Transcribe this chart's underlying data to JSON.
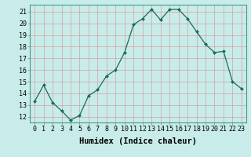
{
  "xlabel": "Humidex (Indice chaleur)",
  "x": [
    0,
    1,
    2,
    3,
    4,
    5,
    6,
    7,
    8,
    9,
    10,
    11,
    12,
    13,
    14,
    15,
    16,
    17,
    18,
    19,
    20,
    21,
    22,
    23
  ],
  "y": [
    13.3,
    14.7,
    13.2,
    12.5,
    11.7,
    12.1,
    13.8,
    14.3,
    15.5,
    16.0,
    17.5,
    19.9,
    20.4,
    21.2,
    20.3,
    21.2,
    21.2,
    20.4,
    19.3,
    18.2,
    17.5,
    17.6,
    15.0,
    14.4
  ],
  "line_color": "#1a6b5a",
  "marker_color": "#1a6b5a",
  "bg_color": "#c8ece9",
  "grid_color": "#d4a0a0",
  "ylim": [
    11.5,
    21.6
  ],
  "yticks": [
    12,
    13,
    14,
    15,
    16,
    17,
    18,
    19,
    20,
    21
  ],
  "xlim": [
    -0.5,
    23.5
  ],
  "axis_fontsize": 6.5,
  "tick_fontsize": 6.0,
  "xlabel_fontsize": 7.5
}
